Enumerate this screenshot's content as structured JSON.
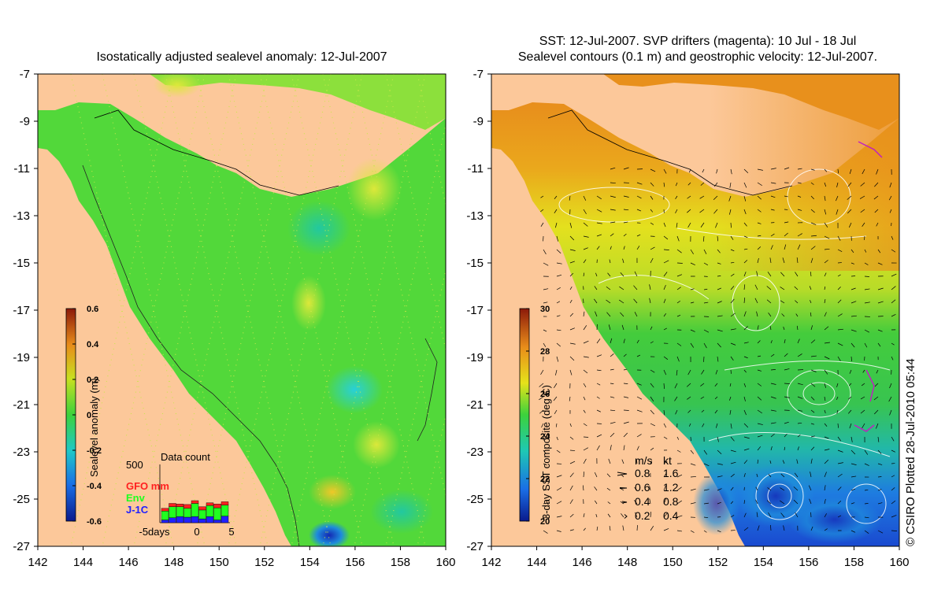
{
  "left_panel": {
    "title": "Isostatically adjusted sealevel anomaly: 12-Jul-2007",
    "colorbar": {
      "label": "Sealevel anomaly (m)",
      "ticks": [
        "0.6",
        "0.4",
        "0.2",
        "0",
        "-0.2",
        "-0.4",
        "-0.6"
      ]
    },
    "data_count": {
      "title": "Data count",
      "max_label": "500",
      "legend": [
        {
          "name": "GFO mm",
          "color": "#ff2020"
        },
        {
          "name": "Env",
          "color": "#20ff20"
        },
        {
          "name": "J-1C",
          "color": "#2020ff"
        }
      ],
      "xticks": [
        "-5days",
        "0",
        "5"
      ],
      "bars": [
        {
          "gfo": 0.05,
          "env": 0.16,
          "j1c": 0.05
        },
        {
          "gfo": 0.06,
          "env": 0.2,
          "j1c": 0.09
        },
        {
          "gfo": 0.05,
          "env": 0.18,
          "j1c": 0.11
        },
        {
          "gfo": 0.07,
          "env": 0.16,
          "j1c": 0.1
        },
        {
          "gfo": 0.05,
          "env": 0.24,
          "j1c": 0.11
        },
        {
          "gfo": 0.06,
          "env": 0.16,
          "j1c": 0.07
        },
        {
          "gfo": 0.05,
          "env": 0.2,
          "j1c": 0.11
        },
        {
          "gfo": 0.07,
          "env": 0.22,
          "j1c": 0.05
        },
        {
          "gfo": 0.06,
          "env": 0.2,
          "j1c": 0.12
        }
      ]
    }
  },
  "right_panel": {
    "title_line1": "SST: 12-Jul-2007. SVP drifters (magenta): 10 Jul - 18 Jul",
    "title_line2": "Sealevel contours (0.1 m) and geostrophic velocity: 12-Jul-2007.",
    "colorbar": {
      "label": "3-day SST composite (deg C)",
      "ticks": [
        "30",
        "28",
        "26",
        "24",
        "22",
        "20"
      ]
    },
    "velocity_legend": {
      "header_ms": "m/s",
      "header_kt": "kt",
      "rows": [
        {
          "ms": "0.8",
          "kt": "1.6"
        },
        {
          "ms": "0.6",
          "kt": "1.2"
        },
        {
          "ms": "0.4",
          "kt": "0.8"
        },
        {
          "ms": "0.2",
          "kt": "0.4"
        }
      ]
    }
  },
  "axes": {
    "yticks": [
      "-7",
      "-9",
      "-11",
      "-13",
      "-15",
      "-17",
      "-19",
      "-21",
      "-23",
      "-25",
      "-27"
    ],
    "xticks": [
      "142",
      "144",
      "146",
      "148",
      "150",
      "152",
      "154",
      "156",
      "158",
      "160"
    ]
  },
  "credit": "© CSIRO Plotted 28-Jul-2010 05:44",
  "colors": {
    "land": "#fcc89a",
    "sla_green": "#52d83a",
    "sla_light": "#8ce03c",
    "sla_teal": "#2fbf7a",
    "sst_orange": "#e8901c",
    "sst_yellow": "#e6e21a",
    "sst_green": "#3cc83c",
    "sst_blue": "#1a5adc"
  }
}
